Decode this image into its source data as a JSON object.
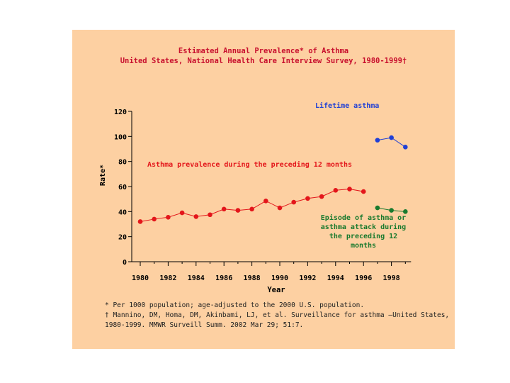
{
  "chart_data": {
    "type": "line",
    "title": "Estimated Annual Prevalence* of Asthma",
    "subtitle": "United States, National Health Care Interview Survey, 1980-1999†",
    "xlabel": "Year",
    "ylabel": "Rate*",
    "ylim": [
      0,
      120
    ],
    "yticks": [
      0,
      20,
      40,
      60,
      80,
      100,
      120
    ],
    "xlim": [
      1980,
      1999
    ],
    "xticks": [
      1980,
      1982,
      1984,
      1986,
      1988,
      1990,
      1992,
      1994,
      1996,
      1998
    ],
    "series": [
      {
        "name": "Asthma prevalence during the preceding 12 months",
        "color": "#e3161b",
        "x": [
          1980,
          1981,
          1982,
          1983,
          1984,
          1985,
          1986,
          1987,
          1988,
          1989,
          1990,
          1991,
          1992,
          1993,
          1994,
          1995,
          1996
        ],
        "values": [
          32,
          34,
          35.5,
          39,
          36,
          37.5,
          42,
          41,
          42,
          48.5,
          43,
          47.5,
          50.5,
          52,
          57,
          58,
          56
        ]
      },
      {
        "name": "Lifetime asthma",
        "color": "#1f3fd6",
        "x": [
          1997,
          1998,
          1999
        ],
        "values": [
          97,
          99,
          91.5
        ]
      },
      {
        "name": "Episode of asthma or asthma attack during the preceding 12 months",
        "color": "#1a7a2e",
        "x": [
          1997,
          1998,
          1999
        ],
        "values": [
          43,
          41,
          40
        ]
      }
    ],
    "annotations": {
      "red": "Asthma prevalence during the preceding 12 months",
      "blue": "Lifetime asthma",
      "green": [
        "Episode of asthma or",
        "asthma attack during",
        "the preceding 12",
        "months"
      ]
    }
  },
  "footnotes": {
    "line1": "* Per 1000 population; age-adjusted to the 2000 U.S. population.",
    "line2": "† Mannino, DM, Homa, DM, Akinbami, LJ, et al. Surveillance for asthma –United States,",
    "line3": "1980-1999. MMWR Surveill Summ. 2002 Mar 29; 51:7."
  }
}
